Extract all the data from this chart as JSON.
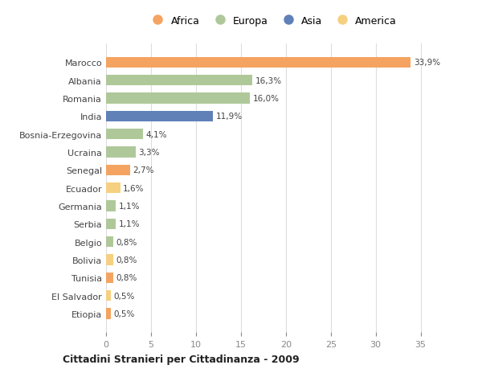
{
  "countries": [
    "Marocco",
    "Albania",
    "Romania",
    "India",
    "Bosnia-Erzegovina",
    "Ucraina",
    "Senegal",
    "Ecuador",
    "Germania",
    "Serbia",
    "Belgio",
    "Bolivia",
    "Tunisia",
    "El Salvador",
    "Etiopia"
  ],
  "values": [
    33.9,
    16.3,
    16.0,
    11.9,
    4.1,
    3.3,
    2.7,
    1.6,
    1.1,
    1.1,
    0.8,
    0.8,
    0.8,
    0.5,
    0.5
  ],
  "labels": [
    "33,9%",
    "16,3%",
    "16,0%",
    "11,9%",
    "4,1%",
    "3,3%",
    "2,7%",
    "1,6%",
    "1,1%",
    "1,1%",
    "0,8%",
    "0,8%",
    "0,8%",
    "0,5%",
    "0,5%"
  ],
  "continents": [
    "Africa",
    "Europa",
    "Europa",
    "Asia",
    "Europa",
    "Europa",
    "Africa",
    "America",
    "Europa",
    "Europa",
    "Europa",
    "America",
    "Africa",
    "America",
    "Africa"
  ],
  "colors": {
    "Africa": "#F4A460",
    "Europa": "#AFC89A",
    "Asia": "#6080B8",
    "America": "#F5D080"
  },
  "bg_color": "#FFFFFF",
  "grid_color": "#DDDDDD",
  "title1": "Cittadini Stranieri per Cittadinanza - 2009",
  "xlim": [
    0,
    37
  ],
  "xticks": [
    0,
    5,
    10,
    15,
    20,
    25,
    30,
    35
  ],
  "legend_order": [
    "Africa",
    "Europa",
    "Asia",
    "America"
  ]
}
